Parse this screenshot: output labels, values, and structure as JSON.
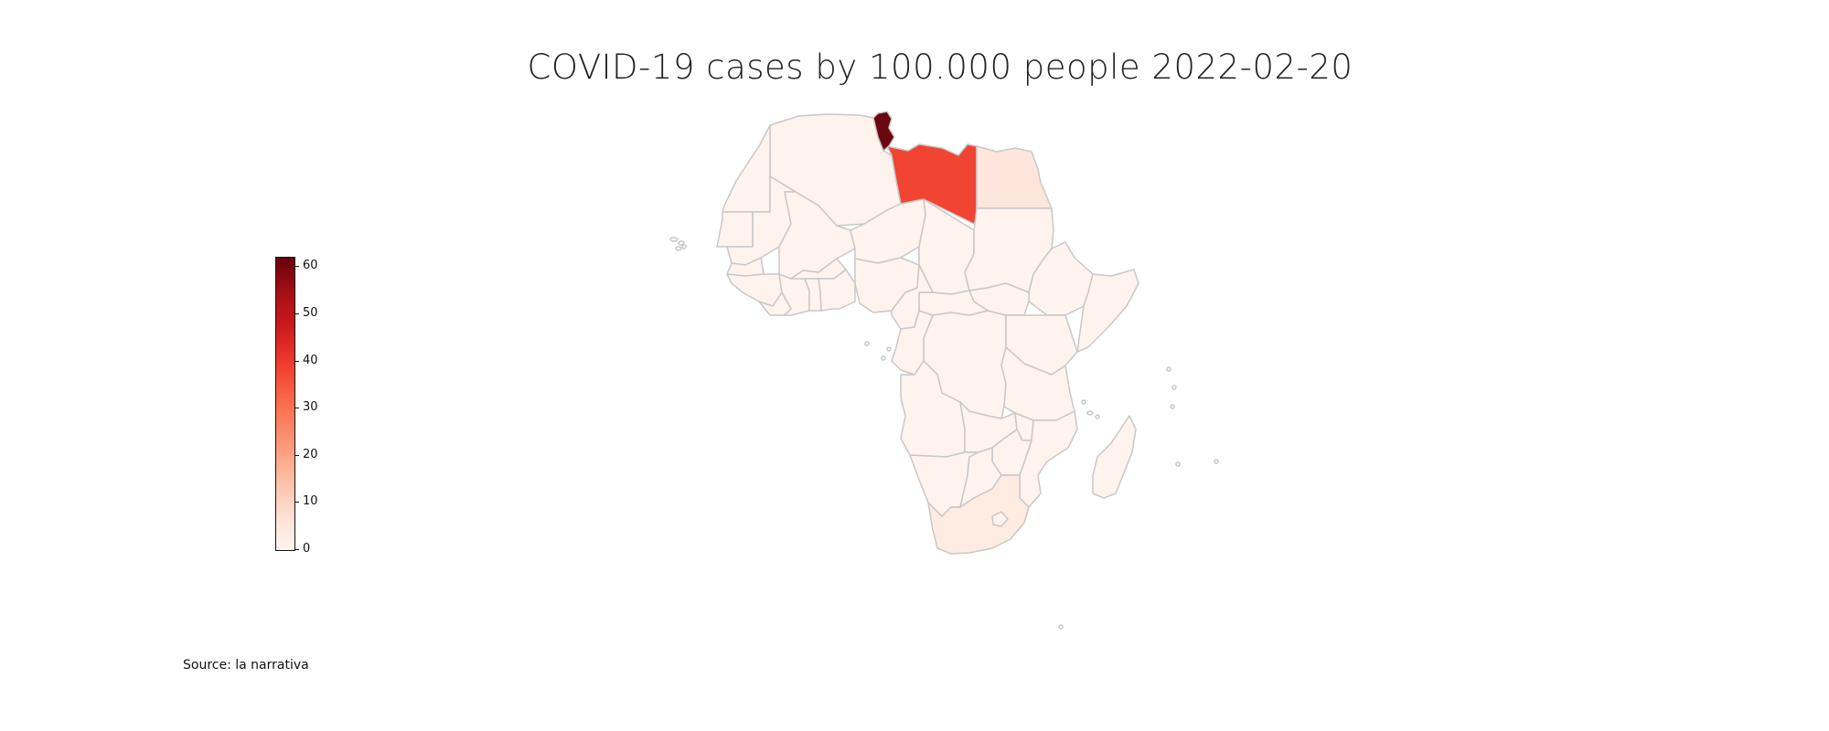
{
  "title": "COVID-19 cases by 100.000 people 2022-02-20",
  "source": "Source: la narrativa",
  "colorbar": {
    "min": 0,
    "max": 62,
    "ticks": [
      "0",
      "10",
      "20",
      "30",
      "40",
      "50",
      "60"
    ],
    "colormap": "Reds"
  },
  "colors": {
    "scale_low": "#fff5f0",
    "scale_high": "#67000d",
    "border": "#c8c8c8",
    "libya": "#f14432",
    "tunisia": "#6a0710",
    "low": "#fff3ee",
    "egypt": "#fee6dc",
    "south_africa": "#feebe2"
  },
  "map_data": {
    "region": "Africa",
    "metric": "COVID-19 cases by 100.000 people",
    "date": "2022-02-20",
    "regions": [
      {
        "name": "Tunisia",
        "value": 60
      },
      {
        "name": "Libya",
        "value": 37
      },
      {
        "name": "Egypt",
        "value": 4
      },
      {
        "name": "South Africa",
        "value": 3
      },
      {
        "name": "Other countries",
        "value": 1
      }
    ]
  }
}
